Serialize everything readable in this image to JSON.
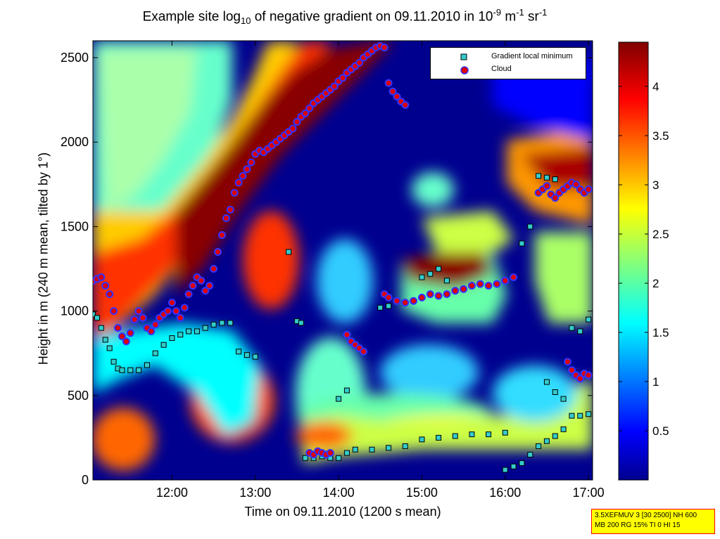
{
  "chart_data": {
    "type": "heatmap",
    "title_parts": {
      "pre": "Example site log",
      "sub": "10",
      "mid": " of negative gradient on 09.11.2010 in 10",
      "sup1": "-9",
      "mid2": " m",
      "sup2": "-1",
      "mid3": " sr",
      "sup3": "-1"
    },
    "xlabel": "Time on 09.11.2010 (1200 s mean)",
    "ylabel": "Height in m (240 m mean, tilted by 1°)",
    "xlim_hours": [
      11.05,
      17.05
    ],
    "ylim": [
      0,
      2600
    ],
    "x_ticks": [
      {
        "value": 12,
        "label": "12:00"
      },
      {
        "value": 13,
        "label": "13:00"
      },
      {
        "value": 14,
        "label": "14:00"
      },
      {
        "value": 15,
        "label": "15:00"
      },
      {
        "value": 16,
        "label": "16:00"
      },
      {
        "value": 17,
        "label": "17:00"
      }
    ],
    "y_ticks": [
      0,
      500,
      1000,
      1500,
      2000,
      2500
    ],
    "colorbar": {
      "range": [
        0,
        4.45
      ],
      "ticks": [
        0.5,
        1,
        1.5,
        2,
        2.5,
        3,
        3.5,
        4
      ],
      "colormap": "jet"
    },
    "legend": {
      "position": "top-right",
      "entries": [
        {
          "label": "Gradient local minimum",
          "marker": "square",
          "fill": "#33cccc",
          "edge": "#000000"
        },
        {
          "label": "Cloud",
          "marker": "circle",
          "fill": "#dd0000",
          "edge": "#3333ff"
        }
      ]
    },
    "series": [
      {
        "name": "Cloud",
        "points": [
          [
            11.05,
            1180
          ],
          [
            11.1,
            1190
          ],
          [
            11.15,
            1200
          ],
          [
            11.2,
            1150
          ],
          [
            11.25,
            1100
          ],
          [
            11.3,
            1000
          ],
          [
            11.35,
            900
          ],
          [
            11.4,
            850
          ],
          [
            11.45,
            820
          ],
          [
            11.5,
            870
          ],
          [
            11.55,
            950
          ],
          [
            11.6,
            1000
          ],
          [
            11.65,
            960
          ],
          [
            11.7,
            900
          ],
          [
            11.75,
            880
          ],
          [
            11.8,
            920
          ],
          [
            11.85,
            960
          ],
          [
            11.9,
            980
          ],
          [
            11.95,
            1000
          ],
          [
            12.0,
            1050
          ],
          [
            12.05,
            1000
          ],
          [
            12.1,
            960
          ],
          [
            12.15,
            1020
          ],
          [
            12.2,
            1100
          ],
          [
            12.25,
            1150
          ],
          [
            12.3,
            1200
          ],
          [
            12.35,
            1180
          ],
          [
            12.4,
            1120
          ],
          [
            12.45,
            1150
          ],
          [
            12.5,
            1250
          ],
          [
            12.55,
            1350
          ],
          [
            12.6,
            1450
          ],
          [
            12.65,
            1550
          ],
          [
            12.7,
            1600
          ],
          [
            12.75,
            1700
          ],
          [
            12.8,
            1760
          ],
          [
            12.85,
            1800
          ],
          [
            12.9,
            1840
          ],
          [
            12.95,
            1880
          ],
          [
            13.0,
            1930
          ],
          [
            13.05,
            1950
          ],
          [
            13.1,
            1940
          ],
          [
            13.15,
            1960
          ],
          [
            13.2,
            1980
          ],
          [
            13.25,
            2000
          ],
          [
            13.3,
            2020
          ],
          [
            13.35,
            2040
          ],
          [
            13.4,
            2060
          ],
          [
            13.45,
            2080
          ],
          [
            13.5,
            2120
          ],
          [
            13.55,
            2150
          ],
          [
            13.6,
            2170
          ],
          [
            13.65,
            2200
          ],
          [
            13.7,
            2230
          ],
          [
            13.75,
            2250
          ],
          [
            13.8,
            2270
          ],
          [
            13.85,
            2290
          ],
          [
            13.9,
            2310
          ],
          [
            13.95,
            2330
          ],
          [
            14.0,
            2360
          ],
          [
            14.05,
            2380
          ],
          [
            14.1,
            2410
          ],
          [
            14.15,
            2430
          ],
          [
            14.2,
            2450
          ],
          [
            14.25,
            2470
          ],
          [
            14.3,
            2500
          ],
          [
            14.35,
            2520
          ],
          [
            14.4,
            2540
          ],
          [
            14.45,
            2560
          ],
          [
            14.5,
            2570
          ],
          [
            14.55,
            2560
          ],
          [
            14.6,
            2350
          ],
          [
            14.65,
            2300
          ],
          [
            14.7,
            2270
          ],
          [
            14.75,
            2240
          ],
          [
            14.8,
            2220
          ],
          [
            14.55,
            1100
          ],
          [
            14.6,
            1080
          ],
          [
            14.7,
            1060
          ],
          [
            14.8,
            1050
          ],
          [
            14.9,
            1060
          ],
          [
            15.0,
            1080
          ],
          [
            15.1,
            1100
          ],
          [
            15.2,
            1090
          ],
          [
            15.3,
            1100
          ],
          [
            15.4,
            1120
          ],
          [
            15.5,
            1130
          ],
          [
            15.6,
            1150
          ],
          [
            15.7,
            1160
          ],
          [
            15.8,
            1150
          ],
          [
            15.9,
            1160
          ],
          [
            16.0,
            1180
          ],
          [
            16.1,
            1200
          ],
          [
            16.4,
            1700
          ],
          [
            16.45,
            1720
          ],
          [
            16.5,
            1740
          ],
          [
            16.55,
            1690
          ],
          [
            16.6,
            1670
          ],
          [
            16.65,
            1700
          ],
          [
            16.7,
            1720
          ],
          [
            16.75,
            1740
          ],
          [
            16.8,
            1760
          ],
          [
            16.85,
            1750
          ],
          [
            16.9,
            1720
          ],
          [
            16.95,
            1700
          ],
          [
            17.0,
            1720
          ],
          [
            14.1,
            860
          ],
          [
            14.15,
            820
          ],
          [
            14.2,
            800
          ],
          [
            14.25,
            780
          ],
          [
            14.3,
            760
          ],
          [
            13.65,
            160
          ],
          [
            13.7,
            150
          ],
          [
            13.75,
            170
          ],
          [
            13.8,
            160
          ],
          [
            13.85,
            150
          ],
          [
            13.9,
            160
          ],
          [
            16.75,
            700
          ],
          [
            16.8,
            650
          ],
          [
            16.85,
            620
          ],
          [
            16.9,
            600
          ],
          [
            16.95,
            630
          ],
          [
            17.0,
            620
          ]
        ]
      },
      {
        "name": "Gradient local minimum",
        "points": [
          [
            11.05,
            980
          ],
          [
            11.1,
            960
          ],
          [
            11.15,
            900
          ],
          [
            11.2,
            830
          ],
          [
            11.25,
            780
          ],
          [
            11.3,
            700
          ],
          [
            11.35,
            660
          ],
          [
            11.4,
            650
          ],
          [
            11.5,
            650
          ],
          [
            11.6,
            650
          ],
          [
            11.7,
            680
          ],
          [
            11.8,
            750
          ],
          [
            11.9,
            800
          ],
          [
            12.0,
            840
          ],
          [
            12.1,
            860
          ],
          [
            12.2,
            880
          ],
          [
            12.3,
            880
          ],
          [
            12.4,
            900
          ],
          [
            12.5,
            920
          ],
          [
            12.6,
            930
          ],
          [
            12.7,
            930
          ],
          [
            12.8,
            760
          ],
          [
            12.9,
            740
          ],
          [
            13.0,
            730
          ],
          [
            13.4,
            1350
          ],
          [
            13.5,
            940
          ],
          [
            13.55,
            930
          ],
          [
            13.6,
            130
          ],
          [
            13.7,
            130
          ],
          [
            13.8,
            140
          ],
          [
            13.9,
            130
          ],
          [
            14.0,
            130
          ],
          [
            14.1,
            160
          ],
          [
            14.2,
            180
          ],
          [
            14.4,
            180
          ],
          [
            14.6,
            190
          ],
          [
            14.8,
            200
          ],
          [
            15.0,
            240
          ],
          [
            15.2,
            250
          ],
          [
            15.4,
            260
          ],
          [
            15.6,
            270
          ],
          [
            15.8,
            270
          ],
          [
            16.0,
            280
          ],
          [
            14.0,
            480
          ],
          [
            14.1,
            530
          ],
          [
            14.5,
            1020
          ],
          [
            14.6,
            1030
          ],
          [
            15.0,
            1200
          ],
          [
            15.1,
            1220
          ],
          [
            15.2,
            1250
          ],
          [
            15.3,
            1180
          ],
          [
            16.0,
            60
          ],
          [
            16.1,
            80
          ],
          [
            16.2,
            100
          ],
          [
            16.3,
            150
          ],
          [
            16.4,
            200
          ],
          [
            16.5,
            230
          ],
          [
            16.6,
            260
          ],
          [
            16.7,
            300
          ],
          [
            16.8,
            380
          ],
          [
            16.9,
            380
          ],
          [
            17.0,
            390
          ],
          [
            16.4,
            1800
          ],
          [
            16.5,
            1790
          ],
          [
            16.6,
            1780
          ],
          [
            16.3,
            1500
          ],
          [
            16.2,
            1400
          ],
          [
            16.5,
            580
          ],
          [
            16.6,
            520
          ],
          [
            16.7,
            480
          ],
          [
            16.8,
            900
          ],
          [
            16.9,
            880
          ],
          [
            17.0,
            950
          ]
        ]
      }
    ]
  },
  "settings_box": {
    "line1": "3.5XEFMUV 3 [30 2500] NH 600",
    "line2": "MB 200 RG 15% TI 0 HI 15"
  }
}
